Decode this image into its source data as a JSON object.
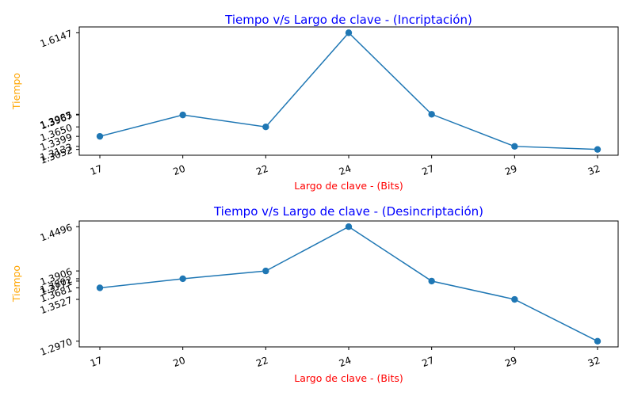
{
  "colors": {
    "line": "#1f77b4",
    "title": "#0000ff",
    "xlabel": "#ff0000",
    "ylabel": "#ffa500"
  },
  "chart_data": [
    {
      "type": "line",
      "title": "Tiempo v/s Largo de clave - (Incriptación)",
      "xlabel": "Largo de clave - (Bits)",
      "ylabel": "Tiempo",
      "x": [
        "17",
        "20",
        "22",
        "24",
        "27",
        "29",
        "32"
      ],
      "y": [
        1.3399,
        1.3967,
        1.365,
        1.6147,
        1.3985,
        1.3133,
        1.3052
      ],
      "yticks": [
        1.3052,
        1.3133,
        1.3399,
        1.365,
        1.3967,
        1.3985,
        1.6147
      ],
      "ylim": [
        1.2898,
        1.6302
      ],
      "grid": false,
      "marker": "o"
    },
    {
      "type": "line",
      "title": "Tiempo v/s Largo de clave - (Desincriptación)",
      "xlabel": "Largo de clave - (Bits)",
      "ylabel": "Tiempo",
      "x": [
        "17",
        "20",
        "22",
        "24",
        "27",
        "29",
        "32"
      ],
      "y": [
        1.3681,
        1.3802,
        1.3906,
        1.4496,
        1.3771,
        1.3527,
        1.297
      ],
      "yticks": [
        1.297,
        1.3527,
        1.3681,
        1.3771,
        1.3802,
        1.3906,
        1.4496
      ],
      "ylim": [
        1.2894,
        1.4572
      ],
      "grid": false,
      "marker": "o"
    }
  ]
}
